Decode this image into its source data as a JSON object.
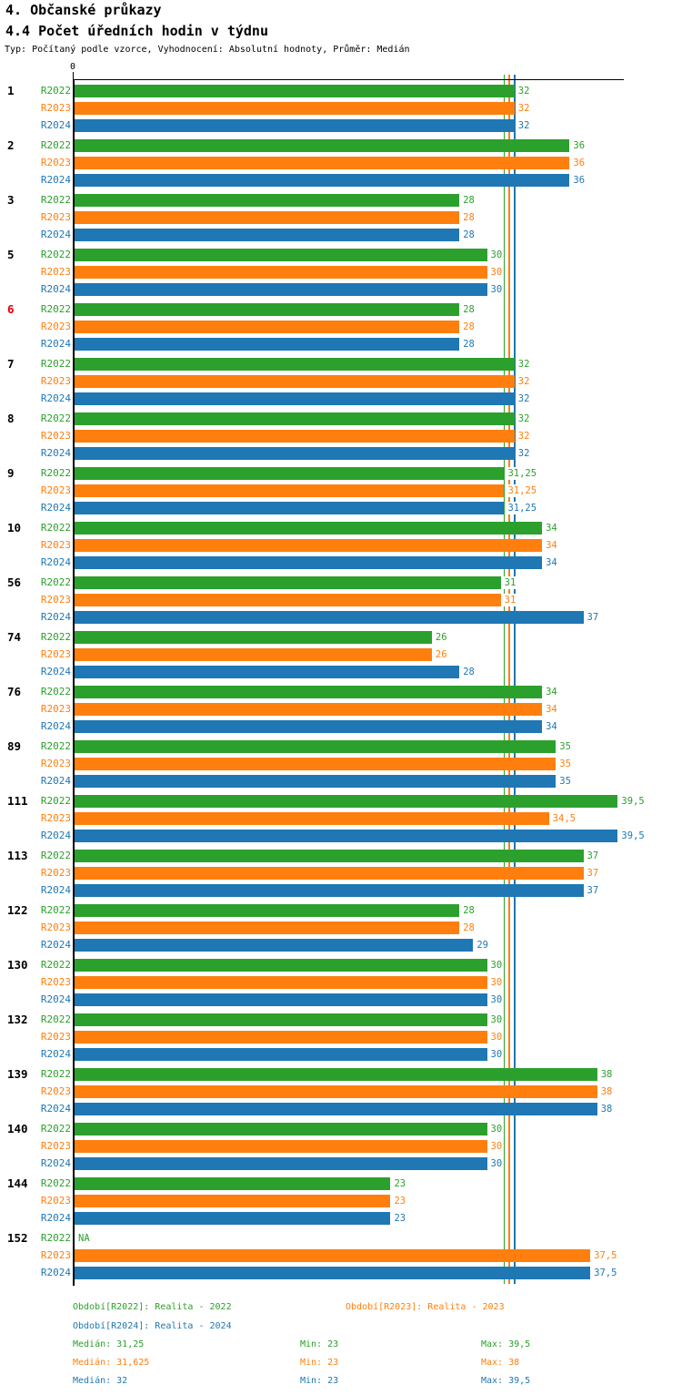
{
  "header": {
    "title": "4. Občanské průkazy",
    "subtitle": "4.4 Počet úředních hodin v týdnu",
    "meta": "Typ: Počítaný podle vzorce, Vyhodnocení: Absolutní hodnoty, Průměr: Medián"
  },
  "chart_data": {
    "type": "bar",
    "orientation": "horizontal",
    "title": "4.4 Počet úředních hodin v týdnu",
    "x_origin_label": "0",
    "xlim": [
      0,
      40
    ],
    "grid": false,
    "na_label": "NA",
    "decimal_separator": ",",
    "categories": [
      "1",
      "2",
      "3",
      "5",
      "6",
      "7",
      "8",
      "9",
      "10",
      "56",
      "74",
      "76",
      "89",
      "111",
      "113",
      "122",
      "130",
      "132",
      "139",
      "140",
      "144",
      "152"
    ],
    "highlighted_categories": [
      "6"
    ],
    "highlight_color": "#e00000",
    "series": [
      {
        "name": "R2022",
        "color": "#2ca02c",
        "median": 31.25,
        "values": [
          32,
          36,
          28,
          30,
          28,
          32,
          32,
          31.25,
          34,
          31,
          26,
          34,
          35,
          39.5,
          37,
          28,
          30,
          30,
          38,
          30,
          23,
          null
        ]
      },
      {
        "name": "R2023",
        "color": "#ff7f0e",
        "median": 31.625,
        "values": [
          32,
          36,
          28,
          30,
          28,
          32,
          32,
          31.25,
          34,
          31,
          26,
          34,
          35,
          34.5,
          37,
          28,
          30,
          30,
          38,
          30,
          23,
          37.5
        ]
      },
      {
        "name": "R2024",
        "color": "#1f77b4",
        "median": 32,
        "values": [
          32,
          36,
          28,
          30,
          28,
          32,
          32,
          31.25,
          34,
          37,
          28,
          34,
          35,
          39.5,
          37,
          29,
          30,
          30,
          38,
          30,
          23,
          37.5
        ]
      }
    ]
  },
  "legend": {
    "periods": [
      {
        "text": "Období[R2022]: Realita - 2022",
        "color": "#2ca02c"
      },
      {
        "text": "Období[R2023]: Realita - 2023",
        "color": "#ff7f0e"
      },
      {
        "text": "Období[R2024]: Realita - 2024",
        "color": "#1f77b4"
      }
    ],
    "stats": [
      {
        "color": "#2ca02c",
        "median": "Medián: 31,25",
        "min": "Min: 23",
        "max": "Max: 39,5"
      },
      {
        "color": "#ff7f0e",
        "median": "Medián: 31,625",
        "min": "Min: 23",
        "max": "Max: 38"
      },
      {
        "color": "#1f77b4",
        "median": "Medián: 32",
        "min": "Min: 23",
        "max": "Max: 39,5"
      }
    ]
  }
}
